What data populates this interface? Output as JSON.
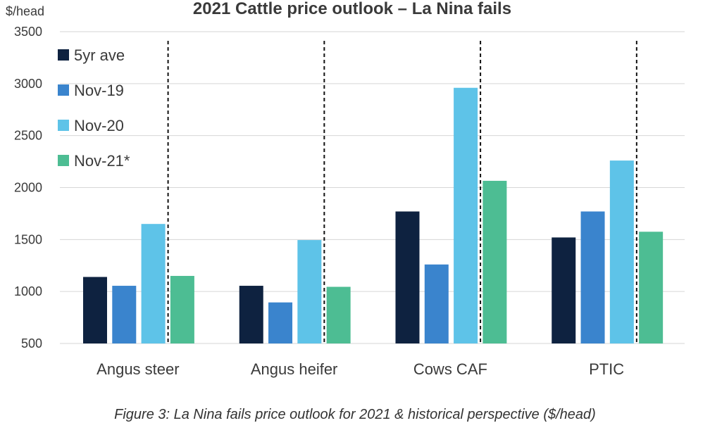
{
  "chart_data": {
    "type": "bar",
    "title": "2021 Cattle price outlook – La Nina fails",
    "ylabel": "$/head",
    "xlabel": "",
    "ylim": [
      500,
      3500
    ],
    "yticks": [
      500,
      1000,
      1500,
      2000,
      2500,
      3000,
      3500
    ],
    "grid": true,
    "legend": "top-left",
    "categories": [
      "Angus steer",
      "Angus heifer",
      "Cows CAF",
      "PTIC"
    ],
    "series": [
      {
        "name": "5yr ave",
        "color": "#0e2240",
        "values": [
          1140,
          1055,
          1770,
          1520
        ]
      },
      {
        "name": "Nov-19",
        "color": "#3a84cd",
        "values": [
          1055,
          895,
          1260,
          1770
        ]
      },
      {
        "name": "Nov-20",
        "color": "#5ec3e8",
        "values": [
          1650,
          1495,
          2960,
          2260
        ]
      },
      {
        "name": "Nov-21*",
        "color": "#4dbd93",
        "values": [
          1150,
          1045,
          2065,
          1575
        ]
      }
    ],
    "annotations": {
      "divider": "dashed vertical line between Nov-20 and Nov-21* in each category"
    }
  },
  "caption": "Figure 3: La Nina fails price outlook for 2021 & historical perspective ($/head)"
}
